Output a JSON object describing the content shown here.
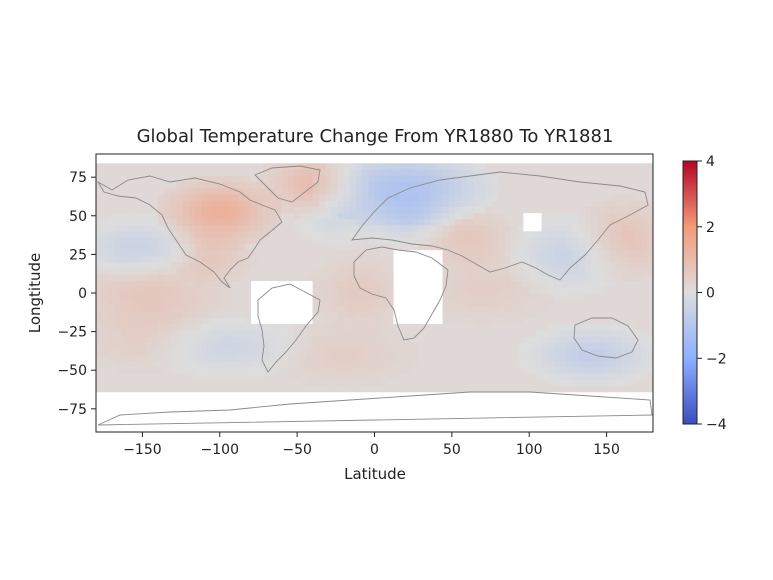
{
  "chart_data": {
    "type": "heatmap",
    "title": "Global Temperature Change From YR1880 To YR1881",
    "xlabel": "Latitude",
    "ylabel": "Longtitude",
    "xlim": [
      -180,
      180
    ],
    "ylim": [
      -90,
      90
    ],
    "x_ticks": [
      -150,
      -100,
      -50,
      0,
      50,
      100,
      150
    ],
    "y_ticks": [
      -75,
      -50,
      -25,
      0,
      25,
      50,
      75
    ],
    "x_tick_labels": [
      "−150",
      "−100",
      "−50",
      "0",
      "50",
      "100",
      "150"
    ],
    "y_tick_labels": [
      "−75",
      "−50",
      "−25",
      "0",
      "25",
      "50",
      "75"
    ],
    "colorbar": {
      "range": [
        -4,
        4
      ],
      "ticks": [
        4,
        2,
        0,
        -2,
        -4
      ],
      "tick_labels": [
        "4",
        "2",
        "0",
        "−2",
        "−4"
      ],
      "colormap": "coolwarm",
      "low_color": "#3b4cc0",
      "mid_color": "#dddddd",
      "high_color": "#b40426"
    },
    "grid_resolution_deg": 4,
    "missing_data_regions_deg": [
      {
        "lon": [
          -80,
          -40
        ],
        "lat": [
          -20,
          8
        ]
      },
      {
        "lon": [
          12,
          42
        ],
        "lat": [
          -20,
          28
        ]
      },
      {
        "lon": [
          96,
          108
        ],
        "lat": [
          40,
          52
        ]
      }
    ],
    "anomaly_regions_deg": [
      {
        "lon": [
          -125,
          -75
        ],
        "lat": [
          40,
          65
        ],
        "value": 1.2
      },
      {
        "lon": [
          -60,
          -20
        ],
        "lat": [
          60,
          82
        ],
        "value": 0.8
      },
      {
        "lon": [
          -20,
          60
        ],
        "lat": [
          55,
          82
        ],
        "value": -1.3
      },
      {
        "lon": [
          0,
          40
        ],
        "lat": [
          40,
          55
        ],
        "value": -0.6
      },
      {
        "lon": [
          -40,
          -10
        ],
        "lat": [
          40,
          55
        ],
        "value": -0.4
      },
      {
        "lon": [
          -180,
          -130
        ],
        "lat": [
          20,
          40
        ],
        "value": -0.6
      },
      {
        "lon": [
          -120,
          -90
        ],
        "lat": [
          15,
          30
        ],
        "value": 0.5
      },
      {
        "lon": [
          -180,
          -110
        ],
        "lat": [
          -15,
          10
        ],
        "value": 0.5
      },
      {
        "lon": [
          -30,
          10
        ],
        "lat": [
          -15,
          15
        ],
        "value": 0.4
      },
      {
        "lon": [
          40,
          100
        ],
        "lat": [
          -10,
          15
        ],
        "value": 0.3
      },
      {
        "lon": [
          100,
          150
        ],
        "lat": [
          10,
          40
        ],
        "value": -0.6
      },
      {
        "lon": [
          140,
          180
        ],
        "lat": [
          20,
          50
        ],
        "value": 0.6
      },
      {
        "lon": [
          -130,
          -60
        ],
        "lat": [
          -45,
          -25
        ],
        "value": -0.5
      },
      {
        "lon": [
          -50,
          10
        ],
        "lat": [
          -50,
          -30
        ],
        "value": 0.3
      },
      {
        "lon": [
          110,
          170
        ],
        "lat": [
          -50,
          -30
        ],
        "value": -0.8
      },
      {
        "lon": [
          -180,
          -120
        ],
        "lat": [
          -40,
          -20
        ],
        "value": 0.3
      },
      {
        "lon": [
          40,
          80
        ],
        "lat": [
          25,
          45
        ],
        "value": 0.5
      }
    ]
  }
}
